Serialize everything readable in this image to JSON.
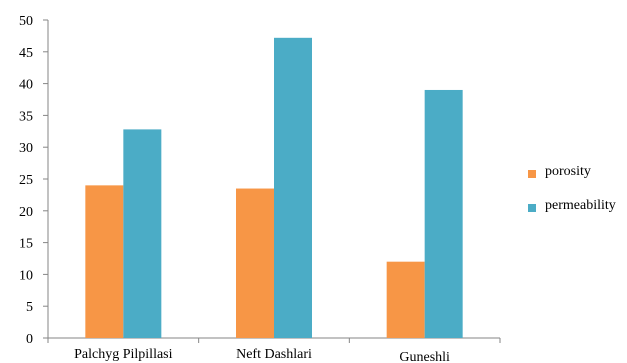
{
  "chart_data": {
    "type": "bar",
    "categories": [
      "Palchyg Pilpillasi",
      "Neft Dashlari",
      "Guneshli"
    ],
    "series": [
      {
        "name": "porosity",
        "values": [
          24,
          23.5,
          12
        ],
        "color": "#F79646"
      },
      {
        "name": "permeability",
        "values": [
          32.8,
          47.2,
          39
        ],
        "color": "#4BACC6"
      }
    ],
    "ylim": [
      0,
      50
    ],
    "yticks": [
      0,
      5,
      10,
      15,
      20,
      25,
      30,
      35,
      40,
      45,
      50
    ],
    "grid": false,
    "legend": "right",
    "title": "",
    "xlabel": "",
    "ylabel": ""
  }
}
